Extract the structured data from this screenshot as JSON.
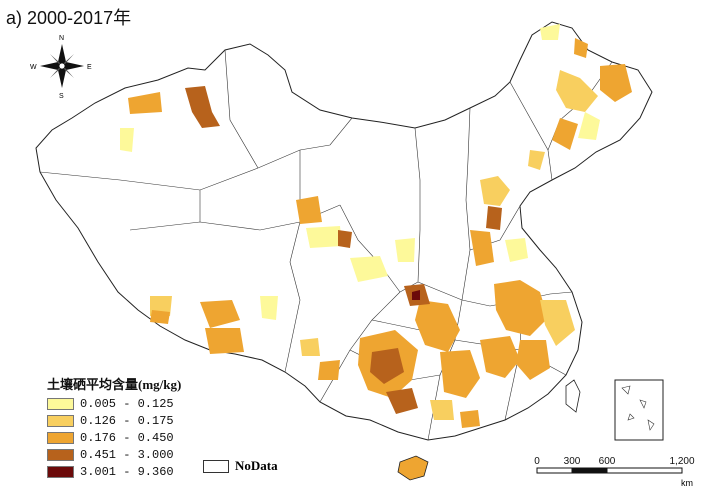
{
  "title": "a) 2000-2017年",
  "compass": {
    "n": "N",
    "e": "E",
    "s": "S",
    "w": "W"
  },
  "legend": {
    "title": "土壤硒平均含量(mg/kg)",
    "classes": [
      {
        "range": "0.005 - 0.125",
        "color": "#fdf99a"
      },
      {
        "range": "0.126 - 0.175",
        "color": "#f8cf5f"
      },
      {
        "range": "0.176 - 0.450",
        "color": "#eea531"
      },
      {
        "range": "0.451 - 3.000",
        "color": "#b7621c"
      },
      {
        "range": "3.001 - 9.360",
        "color": "#6b0a0a"
      }
    ],
    "nodata_label": "NoData"
  },
  "scale_bar": {
    "ticks": [
      "0",
      "300",
      "600",
      "1,200"
    ],
    "unit": "km"
  }
}
